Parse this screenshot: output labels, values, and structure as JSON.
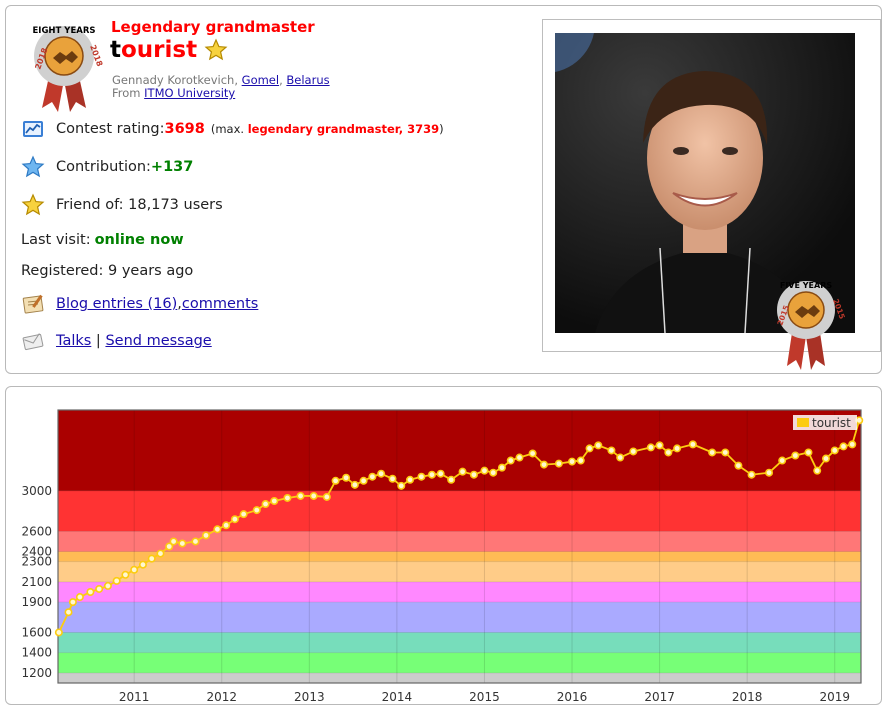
{
  "profile": {
    "rank": "Legendary grandmaster",
    "handle_first": "t",
    "handle_rest": "ourist",
    "name_prefix": "Gennady Korotkevich, ",
    "city": "Gomel",
    "country": "Belarus",
    "from_prefix": "From ",
    "organization": "ITMO University",
    "rating_label": "Contest rating: ",
    "rating": "3698",
    "max_prefix": "(max. ",
    "max_rank": "legendary grandmaster",
    "max_sep": ", ",
    "max_rating": "3739",
    "max_suffix": ")",
    "contribution_label": "Contribution: ",
    "contribution": "+137",
    "friends": "Friend of: 18,173 users",
    "last_visit_label": "Last visit: ",
    "last_visit": "online now",
    "registered": "Registered: 9 years ago",
    "blog_entries": "Blog entries (16)",
    "comma": ", ",
    "comments": "comments",
    "talks": "Talks",
    "separator": " | ",
    "send_message": "Send message"
  },
  "badges": {
    "eight_years": {
      "text": "EIGHT YEARS",
      "year": "2018"
    },
    "five_years": {
      "text": "FIVE YEARS",
      "year": "2015"
    }
  },
  "icons": {
    "rating": "rating-chart-icon",
    "contribution": "blue-star-icon",
    "friend": "yellow-star-icon",
    "blog": "blog-icon",
    "talks": "envelope-icon"
  },
  "colors": {
    "red": "#ff0000",
    "green": "#008000",
    "link": "#1a0dab",
    "series": "#fccc11"
  },
  "chart_data": {
    "type": "line",
    "legend": [
      "tourist"
    ],
    "legend_position": "top-right",
    "x_ticks": [
      "2011",
      "2012",
      "2013",
      "2014",
      "2015",
      "2016",
      "2017",
      "2018",
      "2019"
    ],
    "y_ticks": [
      "1200",
      "1400",
      "1600",
      "1900",
      "2100",
      "2300",
      "2400",
      "2600",
      "3000"
    ],
    "xlim": [
      2010.13,
      2019.3
    ],
    "ylim": [
      1100,
      3800
    ],
    "bands": [
      {
        "from": 1100,
        "to": 1200,
        "color": "#cccccc"
      },
      {
        "from": 1200,
        "to": 1400,
        "color": "#77ff77"
      },
      {
        "from": 1400,
        "to": 1600,
        "color": "#77ddbb"
      },
      {
        "from": 1600,
        "to": 1900,
        "color": "#aaaaff"
      },
      {
        "from": 1900,
        "to": 2100,
        "color": "#ff88ff"
      },
      {
        "from": 2100,
        "to": 2300,
        "color": "#ffcc88"
      },
      {
        "from": 2300,
        "to": 2400,
        "color": "#ffbb55"
      },
      {
        "from": 2400,
        "to": 2600,
        "color": "#ff7777"
      },
      {
        "from": 2600,
        "to": 3000,
        "color": "#ff3333"
      },
      {
        "from": 3000,
        "to": 3800,
        "color": "#aa0000"
      }
    ],
    "series": [
      {
        "name": "tourist",
        "points": [
          [
            2010.14,
            1600
          ],
          [
            2010.25,
            1800
          ],
          [
            2010.3,
            1900
          ],
          [
            2010.38,
            1950
          ],
          [
            2010.5,
            2000
          ],
          [
            2010.6,
            2030
          ],
          [
            2010.7,
            2060
          ],
          [
            2010.8,
            2110
          ],
          [
            2010.9,
            2170
          ],
          [
            2011.0,
            2220
          ],
          [
            2011.1,
            2270
          ],
          [
            2011.2,
            2330
          ],
          [
            2011.3,
            2380
          ],
          [
            2011.4,
            2450
          ],
          [
            2011.45,
            2500
          ],
          [
            2011.55,
            2480
          ],
          [
            2011.7,
            2500
          ],
          [
            2011.82,
            2560
          ],
          [
            2011.95,
            2620
          ],
          [
            2012.05,
            2660
          ],
          [
            2012.15,
            2720
          ],
          [
            2012.25,
            2770
          ],
          [
            2012.4,
            2810
          ],
          [
            2012.5,
            2870
          ],
          [
            2012.6,
            2900
          ],
          [
            2012.75,
            2930
          ],
          [
            2012.9,
            2950
          ],
          [
            2013.05,
            2950
          ],
          [
            2013.2,
            2940
          ],
          [
            2013.3,
            3100
          ],
          [
            2013.42,
            3130
          ],
          [
            2013.52,
            3060
          ],
          [
            2013.62,
            3100
          ],
          [
            2013.72,
            3140
          ],
          [
            2013.82,
            3170
          ],
          [
            2013.95,
            3120
          ],
          [
            2014.05,
            3050
          ],
          [
            2014.15,
            3110
          ],
          [
            2014.28,
            3140
          ],
          [
            2014.4,
            3160
          ],
          [
            2014.5,
            3170
          ],
          [
            2014.62,
            3110
          ],
          [
            2014.75,
            3190
          ],
          [
            2014.88,
            3160
          ],
          [
            2015.0,
            3200
          ],
          [
            2015.1,
            3180
          ],
          [
            2015.2,
            3230
          ],
          [
            2015.3,
            3300
          ],
          [
            2015.4,
            3330
          ],
          [
            2015.55,
            3370
          ],
          [
            2015.68,
            3260
          ],
          [
            2015.85,
            3270
          ],
          [
            2016.0,
            3290
          ],
          [
            2016.1,
            3300
          ],
          [
            2016.2,
            3420
          ],
          [
            2016.3,
            3450
          ],
          [
            2016.45,
            3400
          ],
          [
            2016.55,
            3330
          ],
          [
            2016.7,
            3390
          ],
          [
            2016.9,
            3430
          ],
          [
            2017.0,
            3450
          ],
          [
            2017.1,
            3380
          ],
          [
            2017.2,
            3420
          ],
          [
            2017.38,
            3460
          ],
          [
            2017.6,
            3380
          ],
          [
            2017.75,
            3380
          ],
          [
            2017.9,
            3250
          ],
          [
            2018.05,
            3160
          ],
          [
            2018.25,
            3180
          ],
          [
            2018.4,
            3300
          ],
          [
            2018.55,
            3350
          ],
          [
            2018.7,
            3380
          ],
          [
            2018.8,
            3200
          ],
          [
            2018.9,
            3320
          ],
          [
            2019.0,
            3400
          ],
          [
            2019.1,
            3440
          ],
          [
            2019.2,
            3460
          ],
          [
            2019.28,
            3698
          ]
        ]
      }
    ]
  }
}
